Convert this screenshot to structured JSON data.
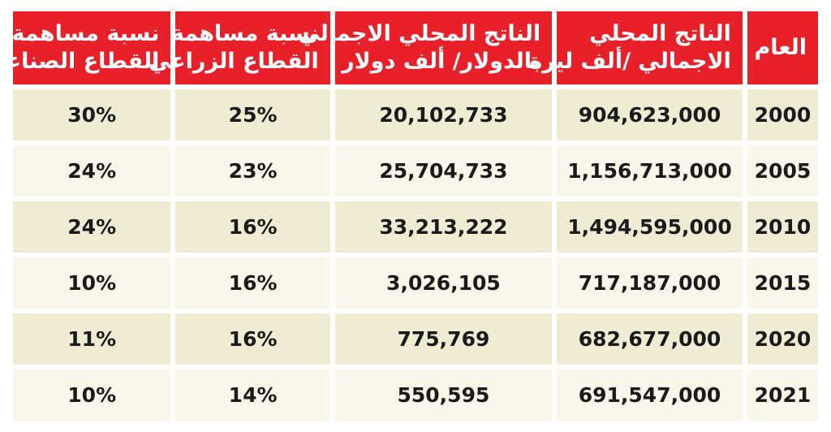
{
  "table": {
    "headers": {
      "year": "العام",
      "gdp_lira": [
        "الناتج المحلي",
        "الاجمالي /ألف ليرة"
      ],
      "gdp_usd": [
        "الناتج المحلي الاجمالي",
        "بالدولار/ ألف دولار"
      ],
      "agri_share": [
        "نسبة مساهمة",
        "القطاع الزراعي"
      ],
      "industry_share": [
        "نسبة مساهمة",
        "القطاع الصناعي"
      ]
    },
    "rows": [
      {
        "year": "2000",
        "gdp_lira": "904,623,000",
        "gdp_usd": "20,102,733",
        "agri_share": "25%",
        "industry_share": "30%"
      },
      {
        "year": "2005",
        "gdp_lira": "1,156,713,000",
        "gdp_usd": "25,704,733",
        "agri_share": "23%",
        "industry_share": "24%"
      },
      {
        "year": "2010",
        "gdp_lira": "1,494,595,000",
        "gdp_usd": "33,213,222",
        "agri_share": "16%",
        "industry_share": "24%"
      },
      {
        "year": "2015",
        "gdp_lira": "717,187,000",
        "gdp_usd": "3,026,105",
        "agri_share": "16%",
        "industry_share": "10%"
      },
      {
        "year": "2020",
        "gdp_lira": "682,677,000",
        "gdp_usd": "775,769",
        "agri_share": "16%",
        "industry_share": "11%"
      },
      {
        "year": "2021",
        "gdp_lira": "691,547,000",
        "gdp_usd": "550,595",
        "agri_share": "14%",
        "industry_share": "10%"
      }
    ]
  },
  "colors": {
    "header_bg": "#e8202a",
    "header_text": "#ffffff",
    "row_odd_bg": "#f0ebd3",
    "row_even_bg": "#faf6e9",
    "cell_text": "#1a1a1a"
  }
}
